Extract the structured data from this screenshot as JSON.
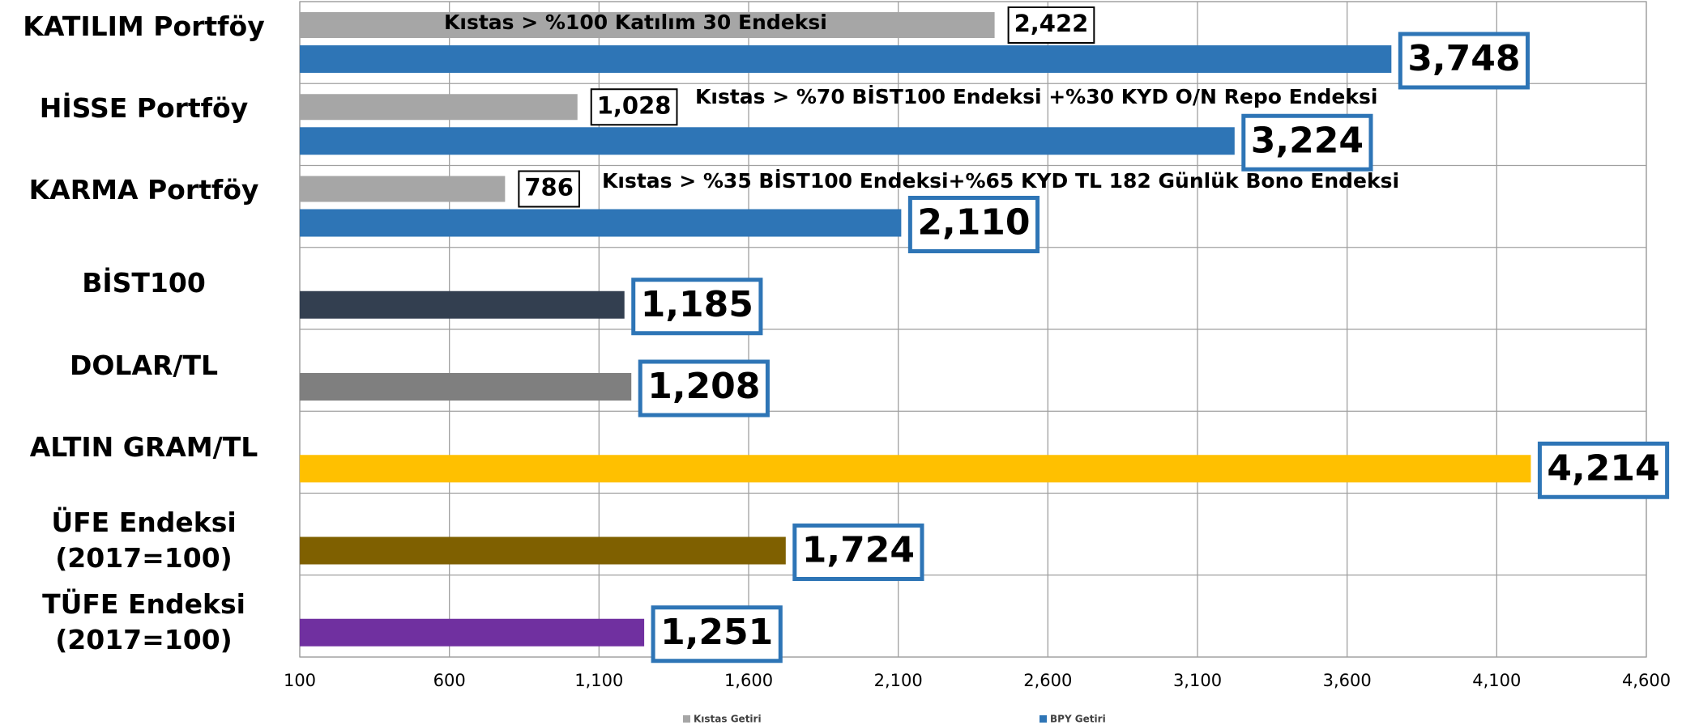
{
  "chart_data": {
    "type": "bar",
    "orientation": "horizontal",
    "categories": [
      "KATILIM Portföy",
      "HİSSE Portföy",
      "KARMA Portföy",
      "BİST100",
      "DOLAR/TL",
      "ALTIN GRAM/TL",
      "ÜFE Endeksi\n(2017=100)",
      "TÜFE Endeksi\n(2017=100)"
    ],
    "series": [
      {
        "name": "Kıstas Getiri",
        "color": "#a6a6a6",
        "values": [
          2422,
          1028,
          786,
          null,
          null,
          null,
          null,
          null
        ],
        "value_labels": [
          "2,422",
          "1,028",
          "786",
          null,
          null,
          null,
          null,
          null
        ]
      },
      {
        "name": "BPY Getiri",
        "color": "#2e75b6",
        "colors": [
          "#2e75b6",
          "#2e75b6",
          "#2e75b6",
          "#333f50",
          "#7f7f7f",
          "#ffc000",
          "#7f6000",
          "#7030a0"
        ],
        "values": [
          3748,
          3224,
          2110,
          1185,
          1208,
          4214,
          1724,
          1251
        ],
        "value_labels": [
          "3,748",
          "3,224",
          "2,110",
          "1,185",
          "1,208",
          "4,214",
          "1,724",
          "1,251"
        ]
      }
    ],
    "annotations": [
      "Kıstas > %100 Katılım 30 Endeksi",
      "Kıstas > %70 BİST100 Endeksi +%30 KYD O/N Repo Endeksi",
      "Kıstas > %35 BİST100 Endeksi+%65 KYD TL 182 Günlük Bono Endeksi"
    ],
    "xlim": [
      100,
      4600
    ],
    "xticks": [
      100,
      600,
      {
        "value": 1100,
        "label": "1,100"
      },
      {
        "value": 1600,
        "label": "1,600"
      },
      {
        "value": 2100,
        "label": "2,100"
      },
      {
        "value": 2600,
        "label": "2,600"
      },
      {
        "value": 3100,
        "label": "3,100"
      },
      {
        "value": 3600,
        "label": "3,600"
      },
      {
        "value": 4100,
        "label": "4,100"
      },
      {
        "value": 4600,
        "label": "4,600"
      }
    ],
    "grid": true,
    "legend": "bottom"
  }
}
